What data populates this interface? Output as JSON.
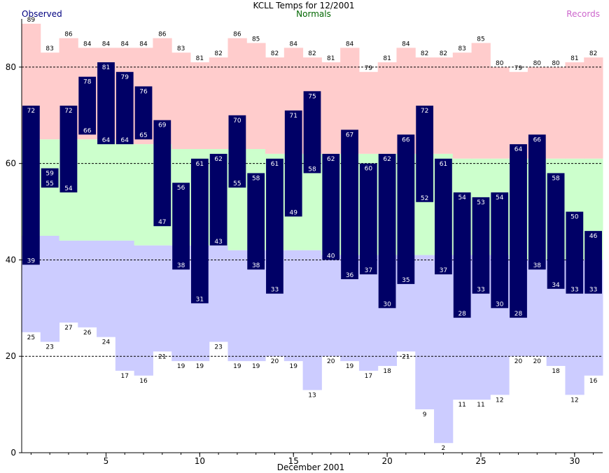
{
  "chart_data": {
    "type": "bar",
    "title": "KCLL Temps for 12/2001",
    "legend": {
      "observed": "Observed",
      "normals": "Normals",
      "records": "Records"
    },
    "xlabel": "December 2001",
    "ylabel": "",
    "ylim": [
      0,
      90
    ],
    "xlim": [
      0.5,
      31.5
    ],
    "yticks": [
      0,
      20,
      40,
      60,
      80
    ],
    "xticks": [
      5,
      10,
      15,
      20,
      25,
      30
    ],
    "grid": "dashed horizontal at 20, 40, 60, 80",
    "days": [
      1,
      2,
      3,
      4,
      5,
      6,
      7,
      8,
      9,
      10,
      11,
      12,
      13,
      14,
      15,
      16,
      17,
      18,
      19,
      20,
      21,
      22,
      23,
      24,
      25,
      26,
      27,
      28,
      29,
      30,
      31
    ],
    "record_high": [
      89,
      83,
      86,
      84,
      84,
      84,
      84,
      86,
      83,
      81,
      82,
      86,
      85,
      82,
      84,
      82,
      81,
      84,
      79,
      81,
      84,
      82,
      82,
      83,
      85,
      80,
      79,
      80,
      80,
      81,
      82
    ],
    "normal_high": [
      65,
      65,
      65,
      65,
      65,
      64,
      64,
      64,
      63,
      63,
      63,
      63,
      63,
      62,
      62,
      62,
      62,
      62,
      62,
      62,
      62,
      62,
      62,
      61,
      61,
      61,
      61,
      61,
      61,
      61,
      61
    ],
    "normal_low": [
      45,
      45,
      44,
      44,
      44,
      44,
      43,
      43,
      43,
      43,
      43,
      42,
      42,
      42,
      42,
      42,
      41,
      41,
      41,
      41,
      41,
      41,
      41,
      41,
      41,
      41,
      40,
      40,
      40,
      40,
      40
    ],
    "record_low": [
      25,
      23,
      27,
      26,
      24,
      17,
      16,
      21,
      19,
      19,
      23,
      19,
      19,
      20,
      19,
      13,
      20,
      19,
      17,
      18,
      21,
      9,
      2,
      11,
      11,
      12,
      20,
      20,
      18,
      12,
      16
    ],
    "observed_high": [
      72,
      59,
      72,
      78,
      81,
      79,
      76,
      69,
      56,
      61,
      62,
      70,
      58,
      61,
      71,
      75,
      62,
      67,
      60,
      62,
      66,
      72,
      61,
      54,
      53,
      54,
      64,
      66,
      58,
      50,
      46
    ],
    "observed_low": [
      39,
      55,
      54,
      66,
      64,
      64,
      65,
      47,
      38,
      31,
      43,
      55,
      38,
      33,
      49,
      58,
      40,
      36,
      37,
      30,
      35,
      52,
      37,
      28,
      33,
      30,
      28,
      38,
      34,
      33,
      33
    ],
    "colors": {
      "record_band": "#ffcccc",
      "normal_band": "#ccffcc",
      "low_band": "#ccccff",
      "observed_bar": "#000066",
      "title": "#000000",
      "observed_label": "#000080",
      "normals_label": "#006600",
      "records_label": "#cc66cc",
      "grid": "#000000"
    }
  }
}
